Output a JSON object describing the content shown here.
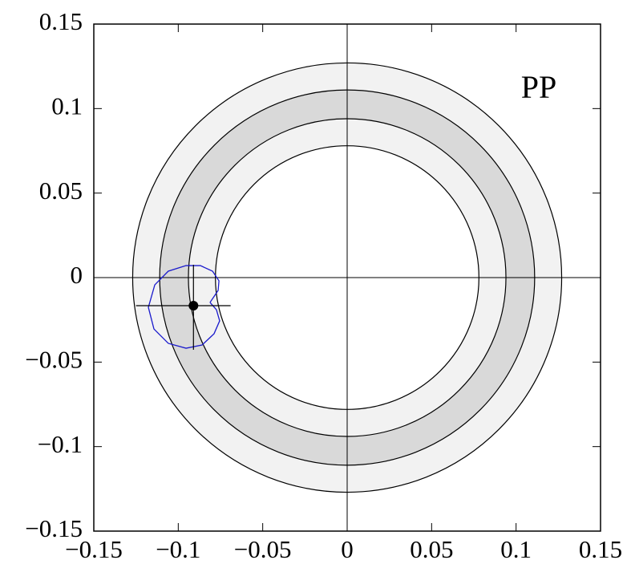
{
  "chart_data": {
    "type": "contour",
    "annotation": "PP",
    "xlim": [
      -0.15,
      0.15
    ],
    "ylim": [
      -0.15,
      0.15
    ],
    "xticks": [
      {
        "value": -0.15,
        "label": "−0.15"
      },
      {
        "value": -0.1,
        "label": "−0.1"
      },
      {
        "value": -0.05,
        "label": "−0.05"
      },
      0,
      0.05,
      0.1,
      0.15
    ],
    "yticks": [
      {
        "value": -0.15,
        "label": "−0.15"
      },
      {
        "value": -0.1,
        "label": "−0.1"
      },
      {
        "value": -0.05,
        "label": "−0.05"
      },
      0,
      0.05,
      0.1,
      0.15
    ],
    "rings": {
      "radii": [
        0.127,
        0.111,
        0.094,
        0.078
      ],
      "colors": [
        "#f2f2f2",
        "#d9d9d9",
        "#f2f2f2",
        "#ffffff"
      ]
    },
    "point": {
      "x": -0.091,
      "y": -0.0166,
      "x_range": [
        -0.125,
        -0.069
      ],
      "y_range": [
        -0.0427,
        0.0076
      ]
    },
    "curve": {
      "color": "#1a1acc",
      "x": [
        -0.0812,
        -0.0764,
        -0.0759,
        -0.0797,
        -0.0869,
        -0.0954,
        -0.1059,
        -0.1139,
        -0.1177,
        -0.1144,
        -0.1059,
        -0.0954,
        -0.0859,
        -0.0788,
        -0.0755,
        -0.0774,
        -0.0812
      ],
      "y": [
        -0.0147,
        -0.0076,
        -0.0019,
        0.0038,
        0.0071,
        0.0071,
        0.0038,
        -0.0043,
        -0.0176,
        -0.0304,
        -0.0389,
        -0.0418,
        -0.0399,
        -0.0332,
        -0.0256,
        -0.019,
        -0.0147
      ]
    }
  }
}
